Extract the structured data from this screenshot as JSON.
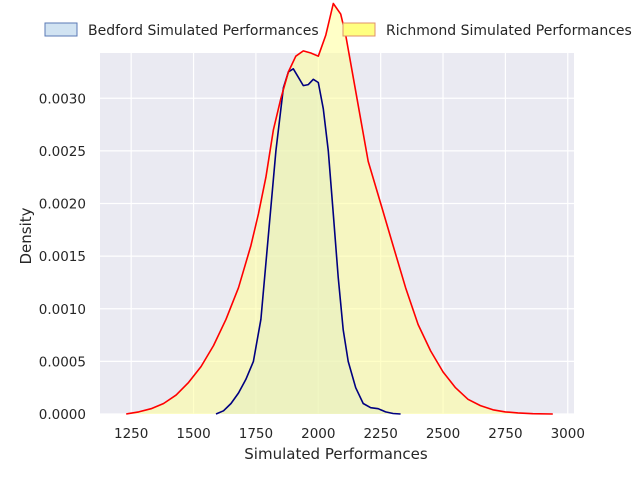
{
  "chart_data": {
    "type": "area",
    "title": "",
    "xlabel": "Simulated Performances",
    "ylabel": "Density",
    "xlim": [
      1125,
      3025
    ],
    "ylim": [
      0,
      0.00343
    ],
    "grid": true,
    "legend_position": "top-center, above plot",
    "x_ticks": [
      1250,
      1500,
      1750,
      2000,
      2250,
      2500,
      2750,
      3000
    ],
    "x_tick_labels": [
      "1250",
      "1500",
      "1750",
      "2000",
      "2250",
      "2500",
      "2750",
      "3000"
    ],
    "y_ticks": [
      0,
      0.0005,
      0.001,
      0.0015,
      0.002,
      0.0025,
      0.003
    ],
    "y_tick_labels": [
      "0.0000",
      "0.0005",
      "0.0010",
      "0.0015",
      "0.0020",
      "0.0025",
      "0.0030"
    ],
    "series": [
      {
        "name": "Bedford Simulated Performances",
        "line_color": "#000080",
        "fill_color": "#c6dcef",
        "fill_opacity": 0.55,
        "x": [
          1590,
          1620,
          1650,
          1680,
          1710,
          1740,
          1770,
          1800,
          1830,
          1860,
          1880,
          1900,
          1920,
          1940,
          1960,
          1980,
          2000,
          2020,
          2040,
          2060,
          2080,
          2100,
          2120,
          2150,
          2180,
          2210,
          2240,
          2270,
          2300,
          2330
        ],
        "y": [
          0.0,
          3e-05,
          0.0001,
          0.0002,
          0.00033,
          0.0005,
          0.0009,
          0.0017,
          0.0025,
          0.0031,
          0.00325,
          0.00328,
          0.0032,
          0.00312,
          0.00313,
          0.00318,
          0.00315,
          0.0029,
          0.0025,
          0.0019,
          0.0013,
          0.0008,
          0.0005,
          0.00025,
          0.0001,
          6e-05,
          5e-05,
          2e-05,
          5e-06,
          0.0
        ]
      },
      {
        "name": "Richmond Simulated Performances",
        "line_color": "#ff0000",
        "fill_color": "#ffff99",
        "fill_opacity": 0.55,
        "x": [
          1230,
          1280,
          1330,
          1380,
          1430,
          1480,
          1530,
          1580,
          1630,
          1680,
          1730,
          1760,
          1790,
          1820,
          1850,
          1880,
          1910,
          1940,
          1970,
          2000,
          2030,
          2060,
          2090,
          2110,
          2140,
          2170,
          2200,
          2250,
          2300,
          2350,
          2400,
          2450,
          2500,
          2550,
          2600,
          2650,
          2700,
          2750,
          2800,
          2860,
          2940
        ],
        "y": [
          0.0,
          2e-05,
          5e-05,
          0.0001,
          0.00018,
          0.0003,
          0.00045,
          0.00065,
          0.0009,
          0.0012,
          0.0016,
          0.0019,
          0.00225,
          0.0027,
          0.003,
          0.00325,
          0.0034,
          0.00345,
          0.00343,
          0.0034,
          0.0036,
          0.0039,
          0.0038,
          0.0036,
          0.0032,
          0.0028,
          0.0024,
          0.002,
          0.0016,
          0.0012,
          0.00085,
          0.0006,
          0.0004,
          0.00025,
          0.00014,
          8e-05,
          4e-05,
          2e-05,
          1e-05,
          3e-06,
          0.0
        ]
      }
    ]
  }
}
